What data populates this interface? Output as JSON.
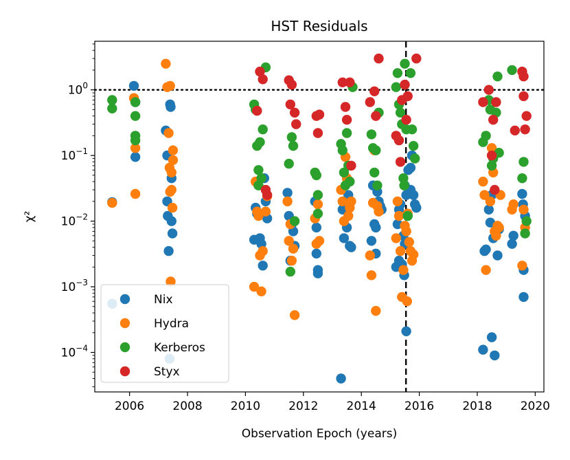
{
  "chart_data": {
    "type": "scatter",
    "title": "HST Residuals",
    "xlabel": "Observation Epoch (years)",
    "ylabel": "χ²",
    "yscale": "log",
    "xlim": [
      2004.8,
      2020.3
    ],
    "ylim": [
      2.5e-05,
      5.5
    ],
    "x_ticks": [
      {
        "value": 2006,
        "label": "2006"
      },
      {
        "value": 2008,
        "label": "2008"
      },
      {
        "value": 2010,
        "label": "2010"
      },
      {
        "value": 2012,
        "label": "2012"
      },
      {
        "value": 2014,
        "label": "2014"
      },
      {
        "value": 2016,
        "label": "2016"
      },
      {
        "value": 2018,
        "label": "2018"
      },
      {
        "value": 2020,
        "label": "2020"
      }
    ],
    "y_ticks": [
      {
        "value": 0.0001,
        "base": "10",
        "exp": "−4"
      },
      {
        "value": 0.001,
        "base": "10",
        "exp": "−3"
      },
      {
        "value": 0.01,
        "base": "10",
        "exp": "−2"
      },
      {
        "value": 0.1,
        "base": "10",
        "exp": "−1"
      },
      {
        "value": 1,
        "base": "10",
        "exp": "0"
      }
    ],
    "reference_lines": [
      {
        "orientation": "horizontal",
        "value": 1.0,
        "style": "dotted",
        "color": "#000000"
      },
      {
        "orientation": "vertical",
        "value": 2015.54,
        "style": "dashed",
        "color": "#000000"
      }
    ],
    "legend": {
      "position": "lower-left"
    },
    "series": [
      {
        "name": "Nix",
        "color": "#1f77b4",
        "points": [
          [
            2005.4,
            0.0195
          ],
          [
            2005.4,
            0.00055
          ],
          [
            2006.15,
            1.15
          ],
          [
            2006.2,
            0.65
          ],
          [
            2006.2,
            0.095
          ],
          [
            2007.25,
            0.24
          ],
          [
            2007.3,
            0.1
          ],
          [
            2007.3,
            0.02
          ],
          [
            2007.32,
            0.012
          ],
          [
            2007.35,
            0.0035
          ],
          [
            2007.38,
            8e-05
          ],
          [
            2007.4,
            0.6
          ],
          [
            2007.42,
            0.55
          ],
          [
            2007.45,
            0.045
          ],
          [
            2007.45,
            0.01
          ],
          [
            2007.48,
            0.0065
          ],
          [
            2010.3,
            0.0052
          ],
          [
            2010.35,
            0.016
          ],
          [
            2010.4,
            0.013
          ],
          [
            2010.5,
            0.0055
          ],
          [
            2010.55,
            0.0045
          ],
          [
            2010.6,
            0.0021
          ],
          [
            2010.65,
            0.045
          ],
          [
            2010.7,
            0.02
          ],
          [
            2010.75,
            0.011
          ],
          [
            2011.45,
            0.027
          ],
          [
            2011.5,
            0.012
          ],
          [
            2011.55,
            0.0025
          ],
          [
            2011.6,
            0.009
          ],
          [
            2011.65,
            0.007
          ],
          [
            2011.7,
            0.0042
          ],
          [
            2012.4,
            0.02
          ],
          [
            2012.45,
            0.008
          ],
          [
            2012.45,
            0.0032
          ],
          [
            2012.5,
            0.0018
          ],
          [
            2012.5,
            0.0016
          ],
          [
            2013.3,
            4e-05
          ],
          [
            2013.35,
            0.015
          ],
          [
            2013.4,
            0.0055
          ],
          [
            2013.45,
            0.017
          ],
          [
            2013.5,
            0.008
          ],
          [
            2013.55,
            0.025
          ],
          [
            2013.6,
            0.0042
          ],
          [
            2013.65,
            0.004
          ],
          [
            2014.35,
            0.005
          ],
          [
            2014.4,
            0.035
          ],
          [
            2014.45,
            0.009
          ],
          [
            2014.5,
            0.008
          ],
          [
            2014.5,
            0.0032
          ],
          [
            2014.55,
            0.028
          ],
          [
            2014.6,
            0.02
          ],
          [
            2014.65,
            0.017
          ],
          [
            2014.7,
            0.015
          ],
          [
            2015.2,
            0.002
          ],
          [
            2015.25,
            0.009
          ],
          [
            2015.3,
            0.015
          ],
          [
            2015.3,
            0.0025
          ],
          [
            2015.35,
            0.018
          ],
          [
            2015.4,
            0.0022
          ],
          [
            2015.45,
            0.006
          ],
          [
            2015.48,
            0.0015
          ],
          [
            2015.5,
            0.035
          ],
          [
            2015.5,
            0.0045
          ],
          [
            2015.55,
            0.025
          ],
          [
            2015.55,
            0.00021
          ],
          [
            2015.6,
            0.012
          ],
          [
            2015.62,
            0.06
          ],
          [
            2015.7,
            0.065
          ],
          [
            2015.7,
            0.03
          ],
          [
            2015.75,
            0.1
          ],
          [
            2015.8,
            0.025
          ],
          [
            2015.85,
            0.018
          ],
          [
            2015.9,
            0.016
          ],
          [
            2018.2,
            0.00011
          ],
          [
            2018.25,
            0.0035
          ],
          [
            2018.3,
            0.0037
          ],
          [
            2018.4,
            0.015
          ],
          [
            2018.45,
            0.0095
          ],
          [
            2018.5,
            0.025
          ],
          [
            2018.5,
            0.00017
          ],
          [
            2018.55,
            0.0055
          ],
          [
            2018.6,
            9e-05
          ],
          [
            2018.7,
            0.003
          ],
          [
            2018.75,
            0.0075
          ],
          [
            2019.2,
            0.0045
          ],
          [
            2019.25,
            0.006
          ],
          [
            2019.55,
            0.026
          ],
          [
            2019.58,
            0.018
          ],
          [
            2019.6,
            0.0018
          ],
          [
            2019.6,
            0.0007
          ],
          [
            2019.65,
            0.012
          ]
        ]
      },
      {
        "name": "Hydra",
        "color": "#ff7f0e",
        "points": [
          [
            2005.4,
            0.019
          ],
          [
            2006.15,
            0.75
          ],
          [
            2006.2,
            0.13
          ],
          [
            2006.2,
            0.026
          ],
          [
            2007.25,
            2.5
          ],
          [
            2007.3,
            1.1
          ],
          [
            2007.35,
            0.22
          ],
          [
            2007.38,
            0.065
          ],
          [
            2007.4,
            1.15
          ],
          [
            2007.4,
            0.028
          ],
          [
            2007.42,
            0.0012
          ],
          [
            2007.45,
            0.055
          ],
          [
            2007.45,
            0.03
          ],
          [
            2007.48,
            0.016
          ],
          [
            2007.5,
            0.085
          ],
          [
            2007.5,
            0.12
          ],
          [
            2010.3,
            0.001
          ],
          [
            2010.35,
            0.04
          ],
          [
            2010.4,
            0.014
          ],
          [
            2010.45,
            0.012
          ],
          [
            2010.5,
            0.003
          ],
          [
            2010.55,
            0.00085
          ],
          [
            2010.6,
            0.0035
          ],
          [
            2010.7,
            0.014
          ],
          [
            2010.75,
            0.024
          ],
          [
            2011.45,
            0.02
          ],
          [
            2011.5,
            0.005
          ],
          [
            2011.55,
            0.009
          ],
          [
            2011.6,
            0.0025
          ],
          [
            2011.65,
            0.0038
          ],
          [
            2011.7,
            0.00037
          ],
          [
            2012.4,
            0.011
          ],
          [
            2012.45,
            0.0045
          ],
          [
            2012.5,
            0.018
          ],
          [
            2012.55,
            0.005
          ],
          [
            2013.3,
            0.03
          ],
          [
            2013.35,
            0.02
          ],
          [
            2013.4,
            0.01
          ],
          [
            2013.45,
            0.095
          ],
          [
            2013.5,
            0.045
          ],
          [
            2013.55,
            0.012
          ],
          [
            2013.6,
            0.016
          ],
          [
            2013.65,
            0.02
          ],
          [
            2014.3,
            0.003
          ],
          [
            2014.35,
            0.0015
          ],
          [
            2014.4,
            0.019
          ],
          [
            2014.45,
            0.12
          ],
          [
            2014.5,
            0.00043
          ],
          [
            2014.55,
            0.017
          ],
          [
            2014.6,
            0.014
          ],
          [
            2015.2,
            0.0055
          ],
          [
            2015.25,
            0.02
          ],
          [
            2015.3,
            0.012
          ],
          [
            2015.35,
            0.0035
          ],
          [
            2015.4,
            0.0007
          ],
          [
            2015.45,
            0.0018
          ],
          [
            2015.5,
            0.0085
          ],
          [
            2015.55,
            0.007
          ],
          [
            2015.58,
            0.0006
          ],
          [
            2015.6,
            0.013
          ],
          [
            2015.65,
            0.0048
          ],
          [
            2015.7,
            0.0035
          ],
          [
            2015.75,
            0.0025
          ],
          [
            2015.8,
            0.0031
          ],
          [
            2018.2,
            0.04
          ],
          [
            2018.25,
            0.025
          ],
          [
            2018.3,
            0.0018
          ],
          [
            2018.45,
            0.02
          ],
          [
            2018.5,
            0.13
          ],
          [
            2018.55,
            0.055
          ],
          [
            2018.6,
            0.007
          ],
          [
            2018.65,
            0.006
          ],
          [
            2018.7,
            0.0085
          ],
          [
            2018.75,
            0.008
          ],
          [
            2018.8,
            0.025
          ],
          [
            2019.2,
            0.015
          ],
          [
            2019.25,
            0.018
          ],
          [
            2019.55,
            0.0021
          ],
          [
            2019.6,
            0.015
          ],
          [
            2019.65,
            0.008
          ]
        ]
      },
      {
        "name": "Kerberos",
        "color": "#2ca02c",
        "points": [
          [
            2005.4,
            0.7
          ],
          [
            2005.4,
            0.52
          ],
          [
            2006.2,
            0.65
          ],
          [
            2006.2,
            0.4
          ],
          [
            2006.2,
            0.2
          ],
          [
            2006.2,
            0.17
          ],
          [
            2010.3,
            0.6
          ],
          [
            2010.35,
            0.5
          ],
          [
            2010.4,
            0.14
          ],
          [
            2010.45,
            0.06
          ],
          [
            2010.45,
            0.035
          ],
          [
            2010.5,
            0.16
          ],
          [
            2010.55,
            0.045
          ],
          [
            2010.6,
            0.25
          ],
          [
            2010.7,
            2.2
          ],
          [
            2011.5,
            0.075
          ],
          [
            2011.55,
            0.0017
          ],
          [
            2011.6,
            0.19
          ],
          [
            2011.65,
            0.14
          ],
          [
            2011.7,
            0.01
          ],
          [
            2012.4,
            0.055
          ],
          [
            2012.45,
            0.05
          ],
          [
            2012.5,
            0.013
          ],
          [
            2012.5,
            0.025
          ],
          [
            2013.3,
            0.15
          ],
          [
            2013.35,
            0.12
          ],
          [
            2013.4,
            0.055
          ],
          [
            2013.45,
            0.035
          ],
          [
            2013.5,
            0.22
          ],
          [
            2013.55,
            0.07
          ],
          [
            2013.6,
            0.04
          ],
          [
            2013.7,
            1.1
          ],
          [
            2014.35,
            0.21
          ],
          [
            2014.4,
            0.13
          ],
          [
            2014.45,
            0.055
          ],
          [
            2014.5,
            0.12
          ],
          [
            2014.55,
            0.035
          ],
          [
            2014.6,
            0.45
          ],
          [
            2015.2,
            1.1
          ],
          [
            2015.25,
            1.8
          ],
          [
            2015.3,
            0.6
          ],
          [
            2015.35,
            0.45
          ],
          [
            2015.4,
            0.3
          ],
          [
            2015.45,
            0.045
          ],
          [
            2015.48,
            0.035
          ],
          [
            2015.5,
            2.5
          ],
          [
            2015.55,
            0.25
          ],
          [
            2015.6,
            0.012
          ],
          [
            2015.7,
            1.8
          ],
          [
            2015.75,
            0.25
          ],
          [
            2015.8,
            0.14
          ],
          [
            2015.85,
            0.09
          ],
          [
            2018.2,
            0.16
          ],
          [
            2018.3,
            0.2
          ],
          [
            2018.4,
            0.7
          ],
          [
            2018.45,
            0.5
          ],
          [
            2018.5,
            0.07
          ],
          [
            2018.55,
            0.09
          ],
          [
            2018.65,
            0.45
          ],
          [
            2018.7,
            1.6
          ],
          [
            2018.75,
            0.11
          ],
          [
            2019.2,
            2.0
          ],
          [
            2019.55,
            0.045
          ],
          [
            2019.6,
            0.08
          ],
          [
            2019.65,
            0.0065
          ],
          [
            2019.7,
            0.01
          ]
        ]
      },
      {
        "name": "Styx",
        "color": "#d62728",
        "points": [
          [
            2010.4,
            0.48
          ],
          [
            2010.5,
            1.9
          ],
          [
            2010.6,
            1.45
          ],
          [
            2010.7,
            0.03
          ],
          [
            2010.75,
            0.025
          ],
          [
            2011.5,
            1.4
          ],
          [
            2011.55,
            0.6
          ],
          [
            2011.6,
            1.2
          ],
          [
            2011.7,
            0.45
          ],
          [
            2011.75,
            0.3
          ],
          [
            2012.45,
            0.4
          ],
          [
            2012.5,
            0.22
          ],
          [
            2012.55,
            0.42
          ],
          [
            2013.35,
            1.3
          ],
          [
            2013.45,
            0.55
          ],
          [
            2013.5,
            0.35
          ],
          [
            2013.6,
            1.3
          ],
          [
            2013.65,
            0.07
          ],
          [
            2014.3,
            0.65
          ],
          [
            2014.45,
            0.95
          ],
          [
            2014.5,
            0.4
          ],
          [
            2014.6,
            3.0
          ],
          [
            2015.2,
            0.2
          ],
          [
            2015.3,
            0.17
          ],
          [
            2015.35,
            0.08
          ],
          [
            2015.4,
            0.7
          ],
          [
            2015.5,
            1.2
          ],
          [
            2015.55,
            0.35
          ],
          [
            2015.6,
            0.8
          ],
          [
            2015.9,
            3.0
          ],
          [
            2018.2,
            0.65
          ],
          [
            2018.4,
            1.0
          ],
          [
            2018.5,
            0.1
          ],
          [
            2018.55,
            0.35
          ],
          [
            2018.6,
            0.03
          ],
          [
            2018.65,
            0.65
          ],
          [
            2019.3,
            0.24
          ],
          [
            2019.55,
            1.9
          ],
          [
            2019.6,
            1.6
          ],
          [
            2019.6,
            0.8
          ],
          [
            2019.7,
            0.4
          ],
          [
            2019.65,
            0.25
          ]
        ]
      }
    ]
  }
}
